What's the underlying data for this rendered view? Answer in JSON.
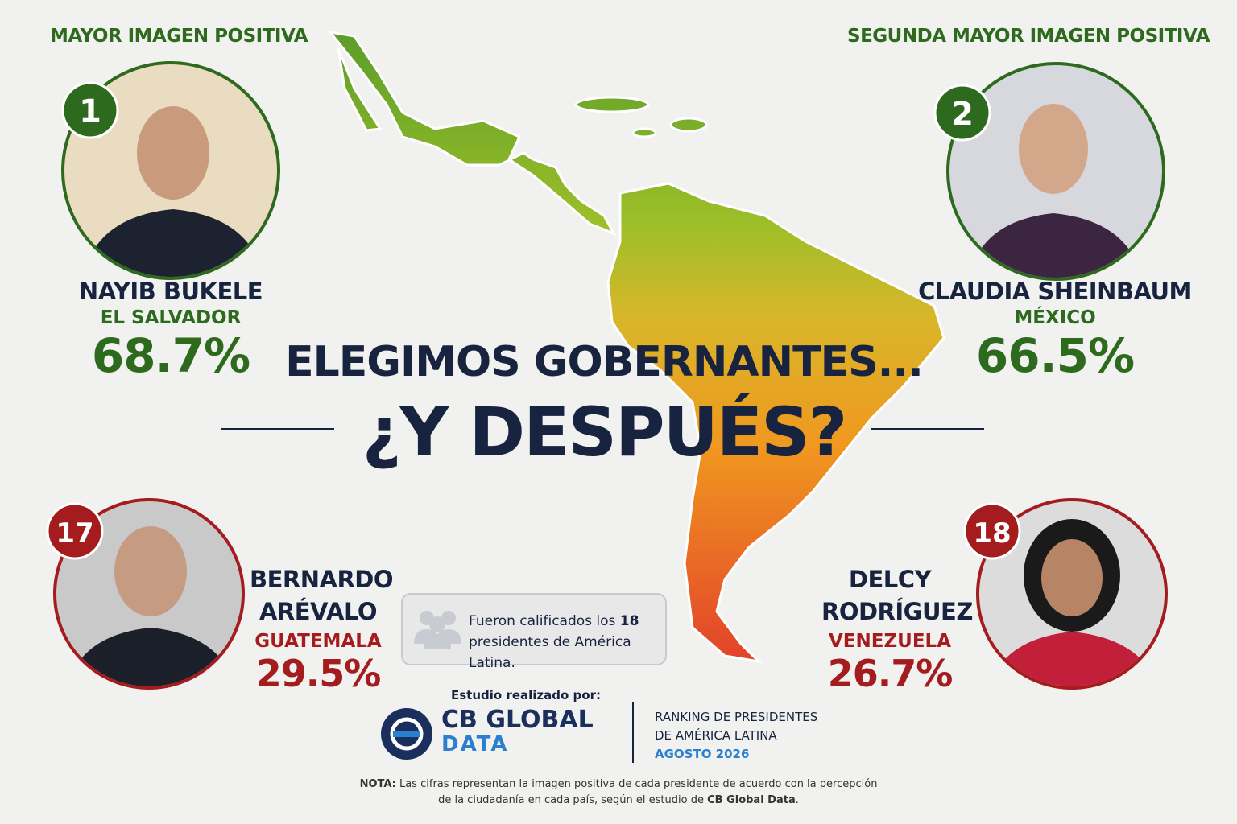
{
  "header": {
    "top_left_label": "MAYOR IMAGEN POSITIVA",
    "top_right_label": "SEGUNDA MAYOR IMAGEN POSITIVA"
  },
  "presidents": [
    {
      "rank": "1",
      "name_lines": [
        "NAYIB BUKELE"
      ],
      "country": "EL SALVADOR",
      "value": "68.7%"
    },
    {
      "rank": "2",
      "name_lines": [
        "CLAUDIA SHEINBAUM"
      ],
      "country": "MÉXICO",
      "value": "66.5%"
    },
    {
      "rank": "17",
      "name_lines": [
        "BERNARDO",
        "ARÉVALO"
      ],
      "country": "GUATEMALA",
      "value": "29.5%"
    },
    {
      "rank": "18",
      "name_lines": [
        "DELCY",
        "RODRÍGUEZ"
      ],
      "country": "VENEZUELA",
      "value": "26.7%"
    }
  ],
  "title": {
    "line1": "ELEGIMOS GOBERNANTES...",
    "line2": "¿Y DESPUÉS?"
  },
  "info_box": {
    "before": "Fueron calificados los ",
    "count": "18",
    "after": "presidentes de América Latina."
  },
  "footer": {
    "study_label": "Estudio realizado por:",
    "logo_line1": "CB GLOBAL",
    "logo_line2": "DATA",
    "ranking_line1": "RANKING DE PRESIDENTES",
    "ranking_line2": "DE AMÉRICA LATINA",
    "ranking_date": "AGOSTO 2026",
    "note_label": "NOTA:",
    "note_line1": "Las cifras representan la imagen positiva de cada presidente de acuerdo con la percepción",
    "note_line2": "de la ciudadanía en cada país, según el estudio de ",
    "note_brand": "CB Global Data",
    "note_end": "."
  }
}
